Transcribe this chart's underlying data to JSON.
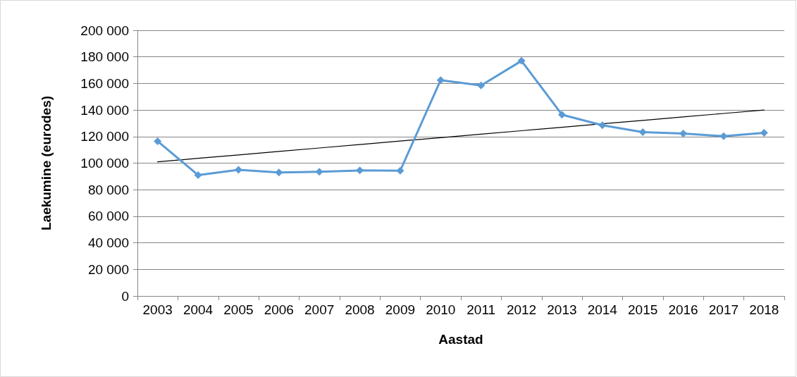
{
  "chart_data": {
    "type": "line",
    "xlabel": "Aastad",
    "ylabel": "Laekumine (eurodes)",
    "categories": [
      "2003",
      "2004",
      "2005",
      "2006",
      "2007",
      "2008",
      "2009",
      "2010",
      "2011",
      "2012",
      "2013",
      "2014",
      "2015",
      "2016",
      "2017",
      "2018"
    ],
    "series": [
      {
        "color": "#5b9bd5",
        "marker": "diamond",
        "values": [
          116500,
          91000,
          95000,
          93000,
          93500,
          94500,
          94300,
          162500,
          158500,
          177000,
          136500,
          128500,
          123300,
          122300,
          120300,
          122800
        ]
      },
      {
        "type": "line",
        "color": "#000000",
        "marker": "none",
        "values": [
          101000,
          103600,
          106200,
          108800,
          111400,
          114000,
          116600,
          119200,
          121800,
          124400,
          127000,
          129600,
          132200,
          134800,
          137400,
          140000
        ]
      }
    ],
    "ylim": [
      0,
      200000
    ],
    "yticks": [
      {
        "value": 0,
        "label": "0"
      },
      {
        "value": 20000,
        "label": "20 000"
      },
      {
        "value": 40000,
        "label": "40 000"
      },
      {
        "value": 60000,
        "label": "60 000"
      },
      {
        "value": 80000,
        "label": "80 000"
      },
      {
        "value": 100000,
        "label": "100 000"
      },
      {
        "value": 120000,
        "label": "120 000"
      },
      {
        "value": 140000,
        "label": "140 000"
      },
      {
        "value": 160000,
        "label": "160 000"
      },
      {
        "value": 180000,
        "label": "180 000"
      },
      {
        "value": 200000,
        "label": "200 000"
      }
    ],
    "grid": "y",
    "line_style": "solid"
  }
}
